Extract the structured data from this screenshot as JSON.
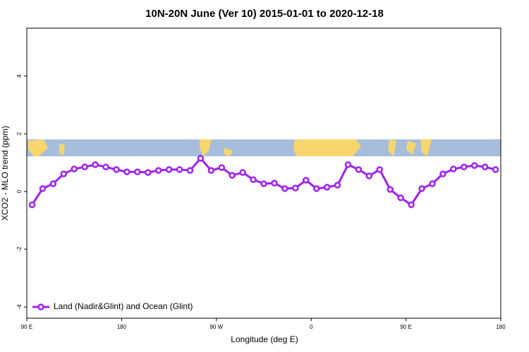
{
  "chart_data": {
    "type": "line",
    "title": "10N-20N June (Ver 10)   2015-01-01 to 2020-12-18",
    "x_label": "Longitude (deg E)",
    "y_label": "XCO2 - MLO trend (ppm)",
    "xlim": [
      90,
      540
    ],
    "ylim": [
      -4.39,
      5.66
    ],
    "xticks": [
      {
        "value": 90,
        "label": "90 E"
      },
      180,
      {
        "value": 270,
        "label": "90 W"
      },
      {
        "value": 360,
        "label": "0"
      },
      {
        "value": 450,
        "label": "90 E"
      },
      {
        "value": 540,
        "label": "180"
      }
    ],
    "yticks": [
      -4,
      -2,
      0,
      2,
      4
    ],
    "legend": "bottom-left",
    "x": [
      95,
      105,
      115,
      125,
      135,
      145,
      155,
      165,
      175,
      185,
      195,
      205,
      215,
      225,
      235,
      245,
      255,
      265,
      275,
      285,
      295,
      305,
      315,
      325,
      335,
      345,
      355,
      365,
      375,
      385,
      395,
      405,
      415,
      425,
      435,
      445,
      455,
      465,
      475,
      485,
      495,
      505,
      515,
      525,
      535
    ],
    "series": [
      {
        "name": "Land (Nadir&Glint) and Ocean (Glint)",
        "color": "#a020f0",
        "values": [
          -0.46,
          0.1,
          0.27,
          0.61,
          0.78,
          0.85,
          0.93,
          0.85,
          0.76,
          0.68,
          0.68,
          0.66,
          0.73,
          0.76,
          0.76,
          0.73,
          1.15,
          0.73,
          0.83,
          0.56,
          0.66,
          0.41,
          0.27,
          0.29,
          0.1,
          0.12,
          0.39,
          0.1,
          0.15,
          0.22,
          0.93,
          0.76,
          0.54,
          0.76,
          0.07,
          -0.22,
          -0.46,
          0.1,
          0.27,
          0.61,
          0.78,
          0.85,
          0.9,
          0.85,
          0.76
        ]
      }
    ]
  }
}
